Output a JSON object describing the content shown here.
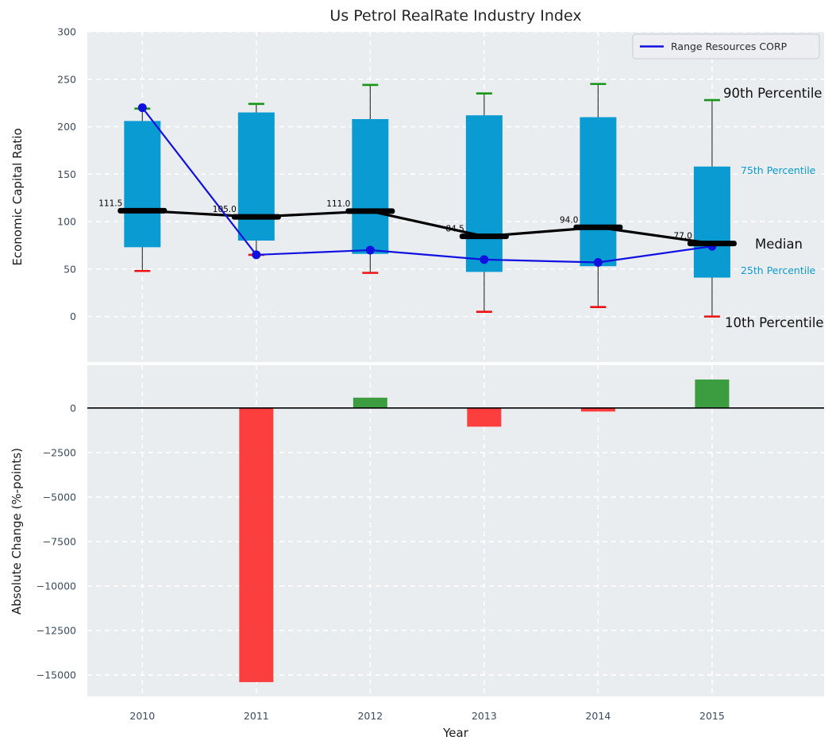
{
  "title": "Us Petrol RealRate Industry Index",
  "legend": {
    "label": "Range Resources CORP"
  },
  "axes": {
    "top_ylabel": "Economic Capital Ratio",
    "bottom_ylabel": "Absolute Change (%-points)",
    "xlabel": "Year"
  },
  "annotations": {
    "p90": "90th Percentile",
    "p75": "75th Percentile",
    "median": "Median",
    "p25": "25th Percentile",
    "p10": "10th Percentile"
  },
  "colors": {
    "box": "#0a9bd2",
    "company_line": "#1010e0",
    "median": "#000000",
    "cap_high": "#169616",
    "cap_low": "#ee1111",
    "bar_up": "#3b9d40",
    "bar_down": "#fb3e3e",
    "axes_bg": "#e9edf0",
    "grid": "#ffffff",
    "tick": "#3c4b60"
  },
  "chart_data": [
    {
      "type": "boxplot",
      "title": "Us Petrol RealRate Industry Index",
      "ylabel": "Economic Capital Ratio",
      "x": [
        2010,
        2011,
        2012,
        2013,
        2014,
        2015
      ],
      "ylim": [
        -48,
        300
      ],
      "yticks": [
        0,
        50,
        100,
        150,
        200,
        250,
        300
      ],
      "grid": true,
      "legend_position": "upper right",
      "series": [
        {
          "name": "90th Percentile",
          "values": [
            219,
            224,
            244,
            235,
            245,
            228
          ]
        },
        {
          "name": "75th Percentile",
          "values": [
            206,
            215,
            208,
            212,
            210,
            158
          ]
        },
        {
          "name": "Median",
          "values": [
            111.5,
            105.0,
            111.0,
            84.5,
            94.0,
            77.0
          ]
        },
        {
          "name": "25th Percentile",
          "values": [
            73,
            80,
            66,
            47,
            53,
            41
          ]
        },
        {
          "name": "10th Percentile",
          "values": [
            48,
            65,
            46,
            5,
            10,
            0
          ]
        },
        {
          "name": "Range Resources CORP",
          "values": [
            220,
            65,
            70,
            60,
            57,
            74
          ]
        }
      ],
      "median_labels": [
        "111.5",
        "105.0",
        "111.0",
        "84.5",
        "94.0",
        "77.0"
      ]
    },
    {
      "type": "bar",
      "ylabel": "Absolute Change (%-points)",
      "xlabel": "Year",
      "categories": [
        2010,
        2011,
        2012,
        2013,
        2014,
        2015
      ],
      "values": [
        0,
        -15400,
        580,
        -1050,
        -200,
        1600
      ],
      "ylim": [
        -16200,
        2400
      ],
      "yticks": [
        0,
        -2500,
        -5000,
        -7500,
        -10000,
        -12500,
        -15000
      ],
      "grid": true
    }
  ]
}
